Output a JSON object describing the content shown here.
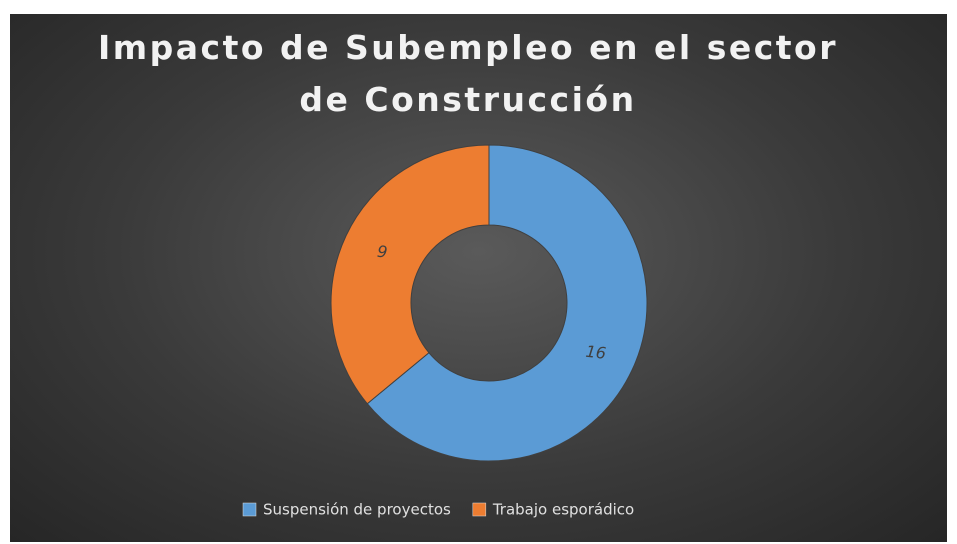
{
  "chart_data": {
    "type": "donut",
    "title": "Impacto de Subempleo en el sector de Construcción",
    "categories": [
      "Suspensión de proyectos",
      "Trabajo esporádico"
    ],
    "values": [
      16,
      9
    ],
    "colors": [
      "#5b9bd5",
      "#ed7d31"
    ],
    "legend": "bottom"
  }
}
